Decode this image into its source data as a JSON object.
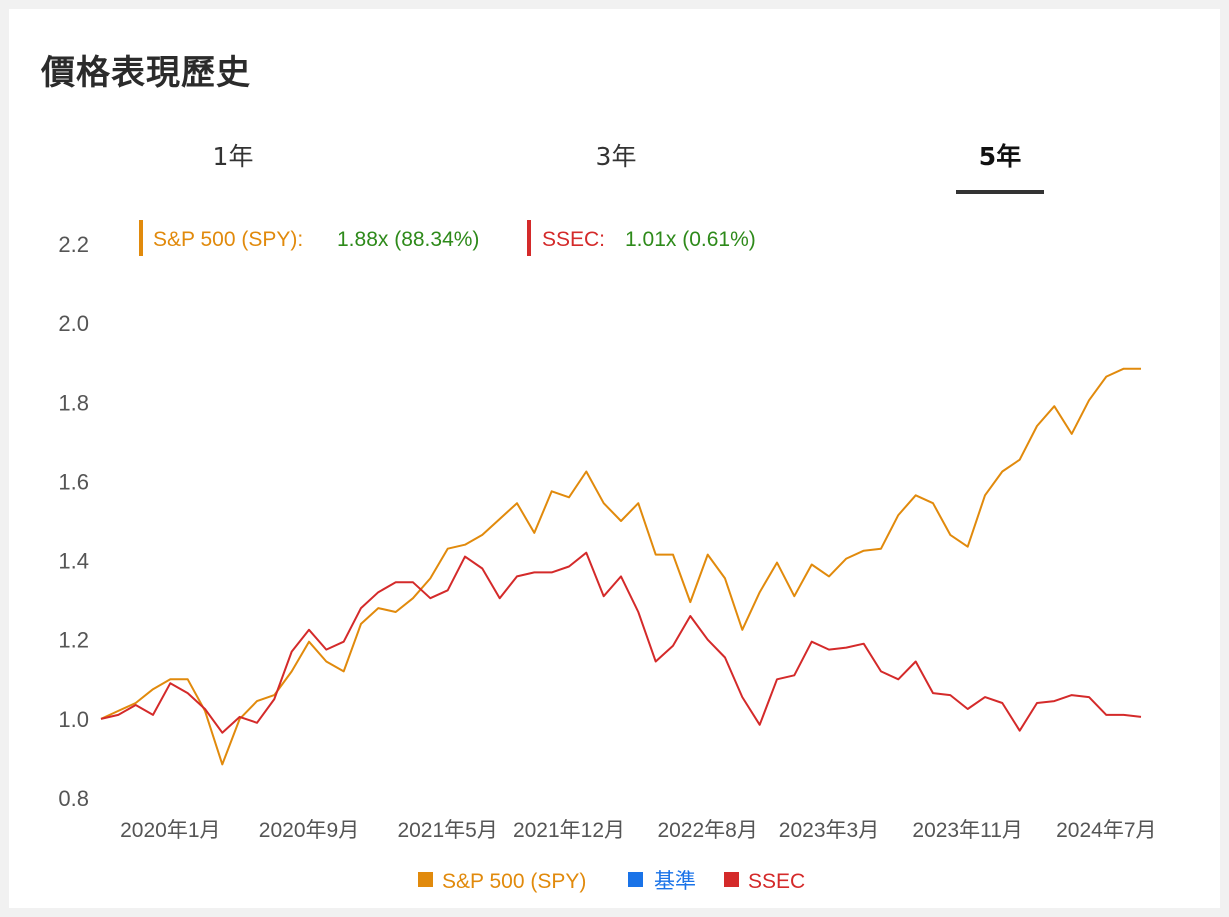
{
  "header": {
    "title": "價格表現歷史"
  },
  "tabs": [
    {
      "label": "1年",
      "active": false
    },
    {
      "label": "3年",
      "active": false
    },
    {
      "label": "5年",
      "active": true
    }
  ],
  "summary": [
    {
      "name": "S&P 500 (SPY)",
      "label": "S&P 500 (SPY):",
      "value": "1.88x (88.34%)",
      "color": "#e18a0c"
    },
    {
      "name": "SSEC",
      "label": "SSEC:",
      "value": "1.01x (0.61%)",
      "color": "#d42a2a"
    }
  ],
  "colors": {
    "value_text": "#2e8a1a",
    "benchmark": "#1a73e8"
  },
  "chart_data": {
    "type": "line",
    "ylim": [
      0.8,
      2.2
    ],
    "yticks": [
      "0.8",
      "1.0",
      "1.2",
      "1.4",
      "1.6",
      "1.8",
      "2.0",
      "2.2"
    ],
    "x_tick_labels": [
      "2020年1月",
      "2020年9月",
      "2021年5月",
      "2021年12月",
      "2022年8月",
      "2023年3月",
      "2023年11月",
      "2024年7月"
    ],
    "x_tick_index": [
      4,
      12,
      20,
      27,
      35,
      42,
      50,
      58
    ],
    "legend": [
      {
        "name": "S&P 500 (SPY)",
        "color": "#e18a0c"
      },
      {
        "name": "基準",
        "color": "#1a73e8"
      },
      {
        "name": "SSEC",
        "color": "#d42a2a"
      }
    ],
    "series": [
      {
        "name": "S&P 500 (SPY)",
        "color": "#e18a0c",
        "values": [
          1.0,
          1.02,
          1.04,
          1.075,
          1.1,
          1.1,
          1.02,
          0.885,
          1.0,
          1.045,
          1.06,
          1.12,
          1.195,
          1.145,
          1.12,
          1.24,
          1.28,
          1.27,
          1.305,
          1.355,
          1.43,
          1.44,
          1.465,
          1.505,
          1.545,
          1.47,
          1.575,
          1.56,
          1.625,
          1.545,
          1.5,
          1.545,
          1.415,
          1.415,
          1.295,
          1.415,
          1.355,
          1.225,
          1.32,
          1.395,
          1.31,
          1.39,
          1.36,
          1.405,
          1.425,
          1.43,
          1.515,
          1.565,
          1.545,
          1.465,
          1.435,
          1.565,
          1.625,
          1.655,
          1.74,
          1.79,
          1.72,
          1.805,
          1.865,
          1.885,
          1.885
        ]
      },
      {
        "name": "SSEC",
        "color": "#d42a2a",
        "values": [
          1.0,
          1.01,
          1.035,
          1.01,
          1.09,
          1.065,
          1.025,
          0.965,
          1.005,
          0.99,
          1.05,
          1.17,
          1.225,
          1.175,
          1.195,
          1.28,
          1.32,
          1.345,
          1.345,
          1.305,
          1.325,
          1.41,
          1.38,
          1.305,
          1.36,
          1.37,
          1.37,
          1.385,
          1.42,
          1.31,
          1.36,
          1.27,
          1.145,
          1.185,
          1.26,
          1.2,
          1.155,
          1.055,
          0.985,
          1.1,
          1.11,
          1.195,
          1.175,
          1.18,
          1.19,
          1.12,
          1.1,
          1.145,
          1.065,
          1.06,
          1.025,
          1.055,
          1.04,
          0.97,
          1.04,
          1.045,
          1.06,
          1.055,
          1.01,
          1.01,
          1.005
        ]
      }
    ]
  }
}
